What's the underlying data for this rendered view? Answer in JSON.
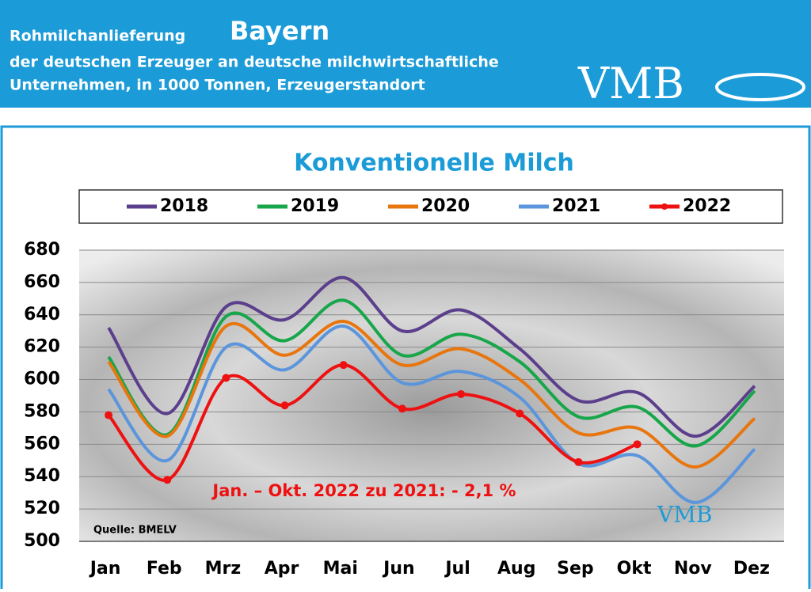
{
  "header": {
    "line1": "Rohmilchanlieferung",
    "region": "Bayern",
    "line2": "der deutschen Erzeuger an deutsche milchwirtschaftliche",
    "line3": "Unternehmen, in 1000 Tonnen, Erzeugerstandort",
    "logo": "VMB"
  },
  "chart_data": {
    "type": "line",
    "title": "Konventionelle Milch",
    "categories": [
      "Jan",
      "Feb",
      "Mrz",
      "Apr",
      "Mai",
      "Jun",
      "Jul",
      "Aug",
      "Sep",
      "Okt",
      "Nov",
      "Dez"
    ],
    "series": [
      {
        "name": "2018",
        "color": "#5b3f8c",
        "values": [
          632,
          579,
          645,
          637,
          663,
          630,
          643,
          619,
          587,
          592,
          565,
          596
        ]
      },
      {
        "name": "2019",
        "color": "#17a64a",
        "values": [
          614,
          566,
          639,
          624,
          649,
          615,
          628,
          611,
          577,
          583,
          559,
          593
        ]
      },
      {
        "name": "2020",
        "color": "#e8760f",
        "values": [
          611,
          565,
          633,
          615,
          636,
          609,
          619,
          600,
          567,
          570,
          546,
          576
        ]
      },
      {
        "name": "2021",
        "color": "#5b95dc",
        "values": [
          594,
          550,
          620,
          606,
          633,
          598,
          605,
          589,
          548,
          553,
          524,
          557
        ]
      },
      {
        "name": "2022",
        "color": "#ee1111",
        "markers": true,
        "values": [
          578,
          538,
          601,
          584,
          609,
          582,
          591,
          579,
          549,
          560,
          null,
          null
        ]
      }
    ],
    "ylim": [
      500,
      680
    ],
    "yticks": [
      500,
      520,
      540,
      560,
      580,
      600,
      620,
      640,
      660,
      680
    ],
    "grid": true,
    "annotation": "Jan. – Okt. 2022 zu 2021: - 2,1 %",
    "source": "Quelle: BMELV",
    "watermark": "VMB"
  }
}
